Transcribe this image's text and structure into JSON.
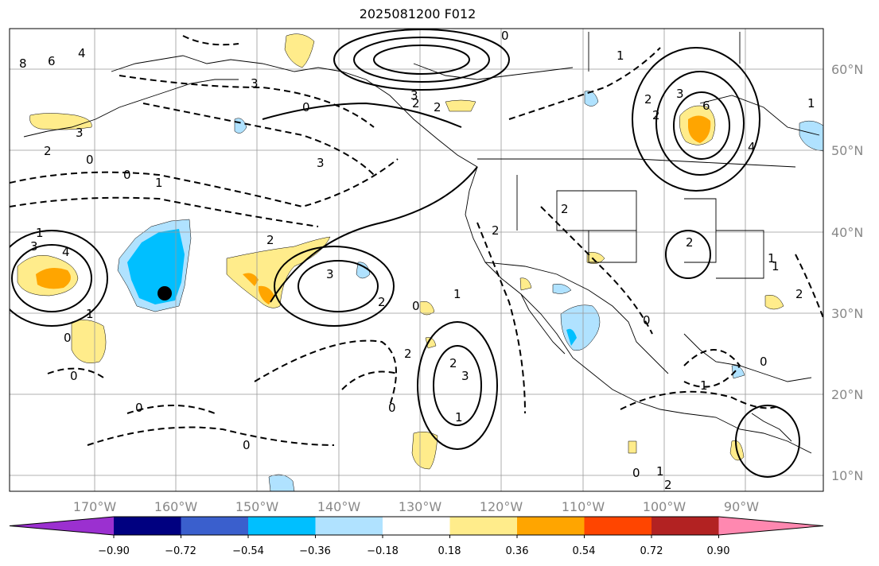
{
  "title": "2025081200 F012",
  "lat_labels": [
    "60°N",
    "50°N",
    "40°N",
    "30°N",
    "20°N",
    "10°N"
  ],
  "lon_labels": [
    "170°W",
    "160°W",
    "150°W",
    "140°W",
    "130°W",
    "120°W",
    "110°W",
    "100°W",
    "90°W"
  ],
  "colorbar": {
    "ticks": [
      "−0.90",
      "−0.72",
      "−0.54",
      "−0.36",
      "−0.18",
      "0.18",
      "0.36",
      "0.54",
      "0.72",
      "0.90"
    ],
    "colors": [
      "#9b30d0",
      "#000080",
      "#3a5fcd",
      "#00bfff",
      "#b0e2ff",
      "#ffffff",
      "#ffec8b",
      "#ffa500",
      "#ff4500",
      "#b22222",
      "#ff88b0"
    ]
  },
  "contour_labels": [
    "8",
    "6",
    "4",
    "3",
    "2",
    "0",
    "1",
    "0",
    "1",
    "2",
    "3",
    "4",
    "3",
    "2",
    "0",
    "3",
    "2",
    "0",
    "1",
    "2",
    "3",
    "6",
    "4",
    "2",
    "3",
    "2",
    "1",
    "0",
    "1",
    "2",
    "3",
    "0",
    "2",
    "1",
    "0",
    "0",
    "1",
    "2",
    "3",
    "2",
    "1",
    "0",
    "0",
    "1",
    "2",
    "0",
    "2",
    "1",
    "0",
    "0",
    "1",
    "2"
  ],
  "marker": "black-dot"
}
